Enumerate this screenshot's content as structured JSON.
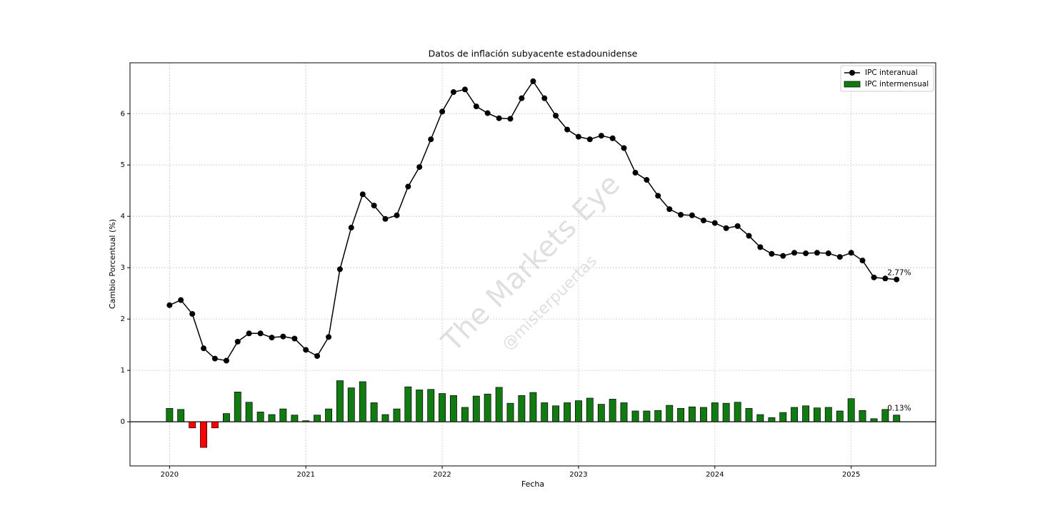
{
  "chart_data": {
    "type": "combo",
    "title": "Datos de inflación subyacente estadounidense",
    "xlabel": "Fecha",
    "ylabel": "Cambio Porcentual (%)",
    "watermark": [
      "The Markets Eye",
      "@misterpuertas"
    ],
    "x": [
      2020,
      2020.083,
      2020.167,
      2020.25,
      2020.333,
      2020.417,
      2020.5,
      2020.583,
      2020.667,
      2020.75,
      2020.833,
      2020.917,
      2021,
      2021.083,
      2021.167,
      2021.25,
      2021.333,
      2021.417,
      2021.5,
      2021.583,
      2021.667,
      2021.75,
      2021.833,
      2021.917,
      2022,
      2022.083,
      2022.167,
      2022.25,
      2022.333,
      2022.417,
      2022.5,
      2022.583,
      2022.667,
      2022.75,
      2022.833,
      2022.917,
      2023,
      2023.083,
      2023.167,
      2023.25,
      2023.333,
      2023.417,
      2023.5,
      2023.583,
      2023.667,
      2023.75,
      2023.833,
      2023.917,
      2024,
      2024.083,
      2024.167,
      2024.25,
      2024.333,
      2024.417,
      2024.5,
      2024.583,
      2024.667,
      2024.75,
      2024.833,
      2024.917,
      2025,
      2025.083,
      2025.167,
      2025.25,
      2025.333
    ],
    "series": [
      {
        "name": "IPC interanual",
        "type": "line",
        "color": "#000000",
        "end_label": "2.77%",
        "values": [
          2.27,
          2.37,
          2.1,
          1.43,
          1.23,
          1.19,
          1.56,
          1.72,
          1.72,
          1.64,
          1.66,
          1.62,
          1.4,
          1.28,
          1.65,
          2.97,
          3.78,
          4.43,
          4.21,
          3.95,
          4.02,
          4.58,
          4.96,
          5.5,
          6.04,
          6.42,
          6.47,
          6.14,
          6.01,
          5.91,
          5.9,
          6.3,
          6.63,
          6.3,
          5.96,
          5.69,
          5.55,
          5.5,
          5.57,
          5.52,
          5.33,
          4.85,
          4.71,
          4.4,
          4.14,
          4.03,
          4.02,
          3.92,
          3.87,
          3.77,
          3.81,
          3.62,
          3.4,
          3.27,
          3.23,
          3.29,
          3.28,
          3.29,
          3.28,
          3.21,
          3.29,
          3.14,
          2.81,
          2.79,
          2.77
        ]
      },
      {
        "name": "IPC intermensual",
        "type": "bar",
        "color": "#117a11",
        "negative_color": "#ff0000",
        "end_label": "0.13%",
        "values": [
          0.26,
          0.24,
          -0.12,
          -0.5,
          -0.12,
          0.16,
          0.58,
          0.38,
          0.19,
          0.14,
          0.25,
          0.13,
          0.02,
          0.13,
          0.25,
          0.8,
          0.66,
          0.78,
          0.37,
          0.14,
          0.25,
          0.68,
          0.62,
          0.63,
          0.55,
          0.51,
          0.28,
          0.5,
          0.54,
          0.67,
          0.36,
          0.51,
          0.57,
          0.37,
          0.31,
          0.37,
          0.41,
          0.46,
          0.34,
          0.44,
          0.37,
          0.21,
          0.21,
          0.22,
          0.32,
          0.26,
          0.29,
          0.28,
          0.37,
          0.36,
          0.38,
          0.26,
          0.14,
          0.08,
          0.18,
          0.28,
          0.31,
          0.27,
          0.28,
          0.21,
          0.45,
          0.22,
          0.06,
          0.24,
          0.13
        ]
      }
    ],
    "xlim": [
      2019.71,
      2025.62
    ],
    "xticks": [
      2020,
      2021,
      2022,
      2023,
      2024,
      2025
    ],
    "ylim": [
      -0.86,
      6.99
    ],
    "yticks": [
      0,
      1,
      2,
      3,
      4,
      5,
      6
    ],
    "grid": true,
    "legend": "upper right"
  }
}
